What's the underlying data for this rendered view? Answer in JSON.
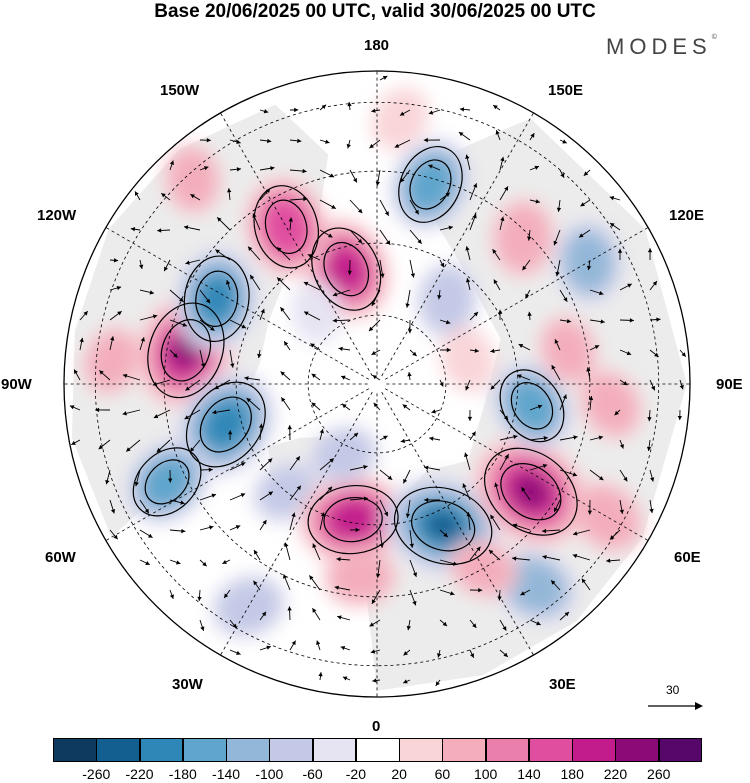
{
  "title": "Base 20/06/2025 00 UTC, valid 30/06/2025 00 UTC",
  "logo": {
    "text": "MODES",
    "mark": "©"
  },
  "longitude_labels": [
    "180",
    "150E",
    "120E",
    "90E",
    "60E",
    "30E",
    "0",
    "30W",
    "60W",
    "90W",
    "120W",
    "150W"
  ],
  "reference_vector": {
    "value": "30",
    "icon": "arrow-right-icon"
  },
  "colorbar": {
    "ticks": [
      "-260",
      "-220",
      "-180",
      "-140",
      "-100",
      "-60",
      "-20",
      "20",
      "60",
      "100",
      "140",
      "180",
      "220",
      "260"
    ],
    "colors": [
      "#0d3a5e",
      "#135f90",
      "#2f87b8",
      "#5fa5cc",
      "#93b7d8",
      "#c3c9e6",
      "#e6e3f2",
      "#ffffff",
      "#f9d5d8",
      "#f3adbb",
      "#eb7fac",
      "#e04ea0",
      "#c21b8c",
      "#8c0a78",
      "#55086a"
    ]
  },
  "map": {
    "projection": "north-polar-stereographic",
    "land_color": "#ececec",
    "anomalies": [
      {
        "lon": -100,
        "r": 0.62,
        "v": 230
      },
      {
        "lon": -75,
        "r": 0.5,
        "v": -210
      },
      {
        "lon": -118,
        "r": 0.58,
        "v": -180
      },
      {
        "lon": -65,
        "r": 0.74,
        "v": -140
      },
      {
        "lon": -40,
        "r": 0.45,
        "v": -60
      },
      {
        "lon": -10,
        "r": 0.44,
        "v": 200
      },
      {
        "lon": 25,
        "r": 0.5,
        "v": -240
      },
      {
        "lon": 38,
        "r": 0.82,
        "v": -120
      },
      {
        "lon": 55,
        "r": 0.6,
        "v": 250
      },
      {
        "lon": 82,
        "r": 0.5,
        "v": -140
      },
      {
        "lon": 100,
        "r": 0.62,
        "v": 60
      },
      {
        "lon": 120,
        "r": 0.78,
        "v": -110
      },
      {
        "lon": 135,
        "r": 0.66,
        "v": 90
      },
      {
        "lon": 165,
        "r": 0.66,
        "v": -150
      },
      {
        "lon": -165,
        "r": 0.38,
        "v": 180
      },
      {
        "lon": -150,
        "r": 0.58,
        "v": 170
      },
      {
        "lon": -138,
        "r": 0.88,
        "v": 60
      },
      {
        "lon": 60,
        "r": 0.85,
        "v": 90
      },
      {
        "lon": 85,
        "r": 0.75,
        "v": 70
      },
      {
        "lon": -30,
        "r": 0.82,
        "v": -80
      },
      {
        "lon": -25,
        "r": 0.25,
        "v": -60
      },
      {
        "lon": 140,
        "r": 0.35,
        "v": -80
      },
      {
        "lon": -5,
        "r": 0.62,
        "v": 70
      },
      {
        "lon": 175,
        "r": 0.85,
        "v": 40
      },
      {
        "lon": -95,
        "r": 0.85,
        "v": 60
      },
      {
        "lon": 30,
        "r": 0.68,
        "v": 60
      },
      {
        "lon": 105,
        "r": 0.3,
        "v": 40
      },
      {
        "lon": -140,
        "r": 0.3,
        "v": -30
      }
    ]
  }
}
